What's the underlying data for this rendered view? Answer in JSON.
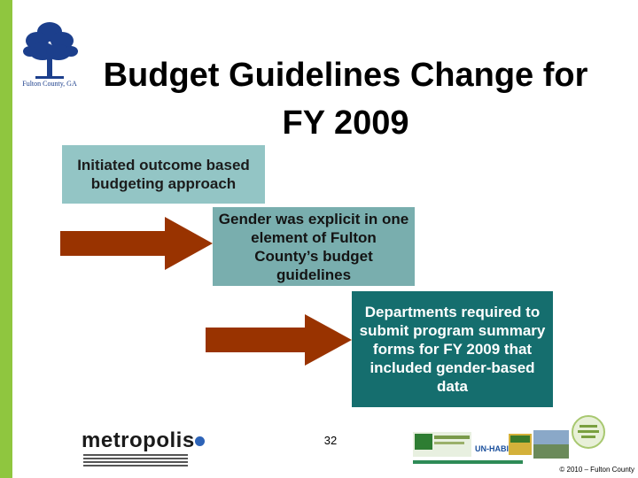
{
  "slide": {
    "title": "Budget Guidelines Change for FY 2009",
    "page_number": "32",
    "copyright": "© 2010 – Fulton County"
  },
  "logo": {
    "caption": "Fulton County, GA",
    "icon": "tree-icon"
  },
  "steps": [
    {
      "text": "Initiated outcome based budgeting approach"
    },
    {
      "text": "Gender was explicit in one element of Fulton County’s budget guidelines"
    },
    {
      "text": "Departments required to submit program summary forms for FY 2009 that included gender-based data"
    }
  ],
  "footer_logos": {
    "metropolis": "metropolis",
    "unhabitat": "UN-HABITAT"
  },
  "colors": {
    "sidebar": "#8fc63f",
    "arrow": "#993300",
    "step1": "#93c5c5",
    "step2": "#79aeae",
    "step3": "#156e6e"
  }
}
